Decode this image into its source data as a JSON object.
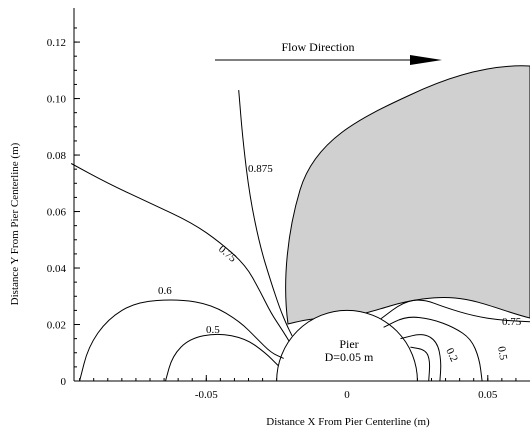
{
  "chart_data": {
    "type": "contour",
    "xlabel": "Distance X From Pier Centerline (m)",
    "ylabel": "Distance Y From Pier Centerline (m)",
    "xlim": [
      -0.097,
      0.065
    ],
    "ylim": [
      0,
      0.131
    ],
    "x_ticks": [
      -0.05,
      0,
      0.05
    ],
    "x_tick_labels": [
      "-0.05",
      "0",
      "0.05"
    ],
    "y_ticks": [
      0,
      0.02,
      0.04,
      0.06,
      0.08,
      0.1,
      0.12
    ],
    "y_tick_labels": [
      "0",
      "0.02",
      "0.04",
      "0.06",
      "0.08",
      "0.10",
      "0.12"
    ],
    "annotation_flow": "Flow Direction",
    "pier_label": "Pier",
    "pier_diameter_label": "D=0.05 m",
    "pier_diameter": 0.05,
    "shaded_region": "gray",
    "contours": [
      {
        "label": "0.875",
        "points": [
          [
            -0.0385,
            0.103
          ],
          [
            -0.037,
            0.085
          ],
          [
            -0.0345,
            0.065
          ],
          [
            -0.031,
            0.048
          ],
          [
            -0.027,
            0.035
          ],
          [
            -0.024,
            0.026
          ],
          [
            -0.0215,
            0.02
          ],
          [
            -0.0195,
            0.016
          ]
        ]
      },
      {
        "label": "0.75",
        "points": [
          [
            -0.098,
            0.077
          ],
          [
            -0.085,
            0.07
          ],
          [
            -0.07,
            0.063
          ],
          [
            -0.055,
            0.056
          ],
          [
            -0.045,
            0.049
          ],
          [
            -0.036,
            0.041
          ],
          [
            -0.031,
            0.032
          ],
          [
            -0.027,
            0.024
          ],
          [
            -0.023,
            0.018
          ],
          [
            -0.0205,
            0.014
          ]
        ]
      },
      {
        "label": "0.6",
        "points": [
          [
            -0.095,
            0.0
          ],
          [
            -0.092,
            0.012
          ],
          [
            -0.085,
            0.022
          ],
          [
            -0.075,
            0.028
          ],
          [
            -0.06,
            0.029
          ],
          [
            -0.048,
            0.027
          ],
          [
            -0.038,
            0.021
          ],
          [
            -0.032,
            0.015
          ],
          [
            -0.027,
            0.01
          ],
          [
            -0.0225,
            0.008
          ]
        ]
      },
      {
        "label": "0.5",
        "points": [
          [
            -0.0645,
            0.0
          ],
          [
            -0.062,
            0.009
          ],
          [
            -0.056,
            0.015
          ],
          [
            -0.046,
            0.017
          ],
          [
            -0.036,
            0.015
          ],
          [
            -0.029,
            0.01
          ],
          [
            -0.0245,
            0.0055
          ]
        ]
      },
      {
        "label": "0.75",
        "points": [
          [
            0.012,
            0.022
          ],
          [
            0.02,
            0.028
          ],
          [
            0.027,
            0.029
          ],
          [
            0.035,
            0.026
          ],
          [
            0.045,
            0.023
          ],
          [
            0.055,
            0.0215
          ],
          [
            0.065,
            0.021
          ]
        ]
      },
      {
        "label": "0.5",
        "points": [
          [
            0.013,
            0.019
          ],
          [
            0.021,
            0.023
          ],
          [
            0.03,
            0.022
          ],
          [
            0.038,
            0.019
          ],
          [
            0.044,
            0.015
          ],
          [
            0.047,
            0.008
          ],
          [
            0.048,
            0.0
          ]
        ]
      },
      {
        "label": "0.2",
        "points": [
          [
            0.019,
            0.015
          ],
          [
            0.027,
            0.017
          ],
          [
            0.032,
            0.014
          ],
          [
            0.0335,
            0.007
          ],
          [
            0.033,
            0.0
          ]
        ]
      },
      {
        "label": "",
        "points": [
          [
            0.0225,
            0.012
          ],
          [
            0.028,
            0.011
          ],
          [
            0.0295,
            0.007
          ],
          [
            0.029,
            0.0
          ]
        ]
      }
    ]
  }
}
